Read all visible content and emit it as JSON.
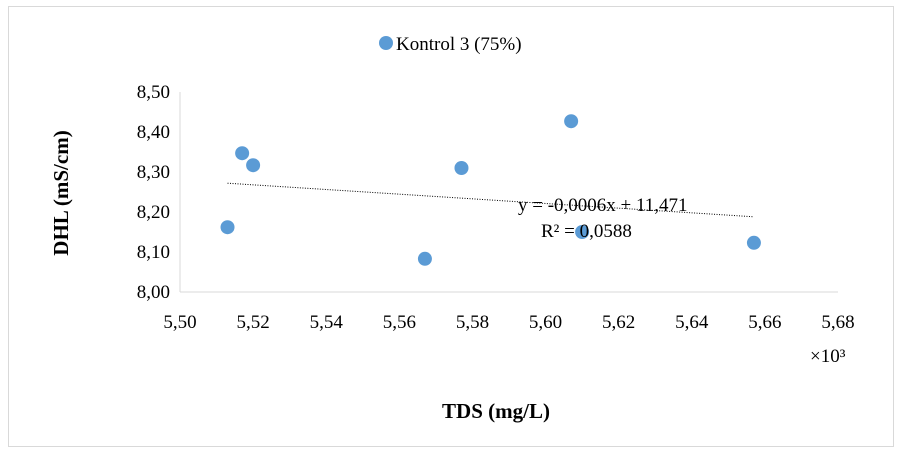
{
  "chart_data": {
    "type": "scatter",
    "series": [
      {
        "name": "Kontrol 3 (75%)",
        "color": "#5b9bd5",
        "x": [
          5.513,
          5.517,
          5.52,
          5.567,
          5.577,
          5.607,
          5.61,
          5.657
        ],
        "y": [
          8.162,
          8.347,
          8.317,
          8.083,
          8.31,
          8.427,
          8.15,
          8.123
        ]
      }
    ],
    "trendline": {
      "type": "linear",
      "x_range": [
        5.513,
        5.657
      ],
      "y_range": [
        8.272,
        8.188
      ],
      "style": "dotted",
      "equation": "y = -0,0006x + 11,471",
      "r_squared": "R² = 0,0588"
    },
    "xlabel": "TDS (mg/L)",
    "ylabel": "DHL (mS/cm)",
    "x_multiplier_label": "×10³",
    "xlim": [
      5.5,
      5.68
    ],
    "ylim": [
      8.0,
      8.5
    ],
    "x_ticks": [
      "5,50",
      "5,52",
      "5,54",
      "5,56",
      "5,58",
      "5,60",
      "5,62",
      "5,64",
      "5,66",
      "5,68"
    ],
    "y_ticks": [
      "8,00",
      "8,10",
      "8,20",
      "8,30",
      "8,40",
      "8,50"
    ],
    "grid": false,
    "legend_position": "top-center"
  }
}
